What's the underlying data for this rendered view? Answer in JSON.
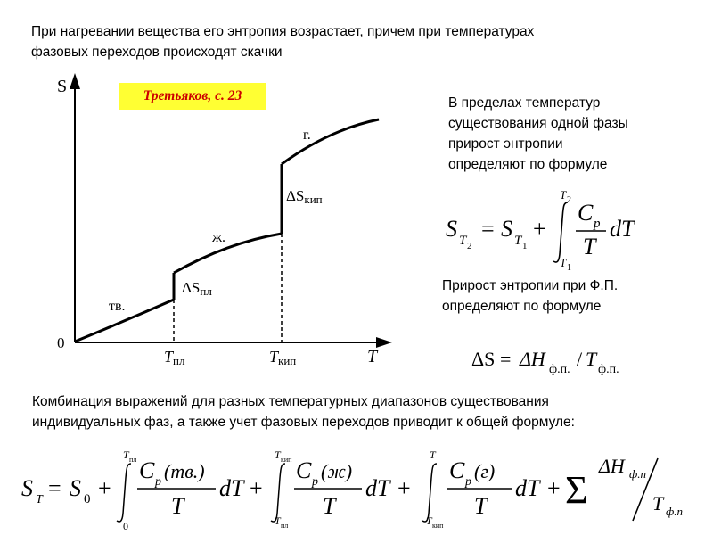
{
  "intro": {
    "line1": "При нагревании вещества его энтропия возрастает, причем при температурах",
    "line2": "фазовых переходов происходят скачки"
  },
  "badge": "Третьяков, с. 23",
  "graph": {
    "y_axis": "S",
    "x_axis": "T",
    "origin": "0",
    "phase_solid": "тв.",
    "phase_liquid": "ж.",
    "phase_gas": "г.",
    "jump_melt": {
      "delta": "ΔS",
      "sub": "пл"
    },
    "jump_boil": {
      "delta": "ΔS",
      "sub": "кип"
    },
    "tick_melt": {
      "sym": "T",
      "sub": "пл"
    },
    "tick_boil": {
      "sym": "T",
      "sub": "кип"
    }
  },
  "note1": {
    "line1": "В пределах температур",
    "line2": "существования одной фазы",
    "line3": "прирост энтропии",
    "line4": "определяют по формуле"
  },
  "formula1": {
    "lhs": "S",
    "lhs_sub": "T",
    "lhs_subsub": "2",
    "eq": "=",
    "s": "S",
    "s_sub": "T",
    "s_subsub": "1",
    "plus": "+",
    "upper": "T",
    "upper_sub": "2",
    "lower": "T",
    "lower_sub": "1",
    "num": "C",
    "num_sub": "p",
    "den": "T",
    "dt": "dT"
  },
  "note2": {
    "line1": "Прирост энтропии при Ф.П.",
    "line2": "определяют по формуле"
  },
  "formula2": {
    "delta_s": "ΔS",
    "eq": "=",
    "delta_h": "ΔH",
    "h_sub": "ф.п.",
    "slash": "/",
    "t": "T",
    "t_sub": "ф.п."
  },
  "combo": {
    "line1": "Комбинация выражений для разных температурных диапазонов существования",
    "line2": "индивидуальных фаз, а также учет фазовых переходов приводит к общей формуле:"
  },
  "formula3": {
    "lhs": "S",
    "lhs_sub": "T",
    "eq": "=",
    "s0": "S",
    "s0_sub": "0",
    "plus": "+",
    "i1_upper": "T",
    "i1_upper_sub": "пл",
    "i1_lower": "0",
    "i1_num": "C",
    "i1_num_sub": "p",
    "i1_num_arg": "(тв.)",
    "i2_upper": "T",
    "i2_upper_sub": "кип",
    "i2_lower": "T",
    "i2_lower_sub": "пл",
    "i2_num": "C",
    "i2_num_sub": "p",
    "i2_num_arg": "(ж)",
    "i3_upper": "T",
    "i3_lower": "T",
    "i3_lower_sub": "кип",
    "i3_num": "C",
    "i3_num_sub": "p",
    "i3_num_arg": "(г)",
    "den": "T",
    "dt": "dT",
    "sum": "Σ",
    "dh": "ΔH",
    "dh_sub": "ф.п",
    "t_fp": "T",
    "t_fp_sub": "ф.п"
  }
}
